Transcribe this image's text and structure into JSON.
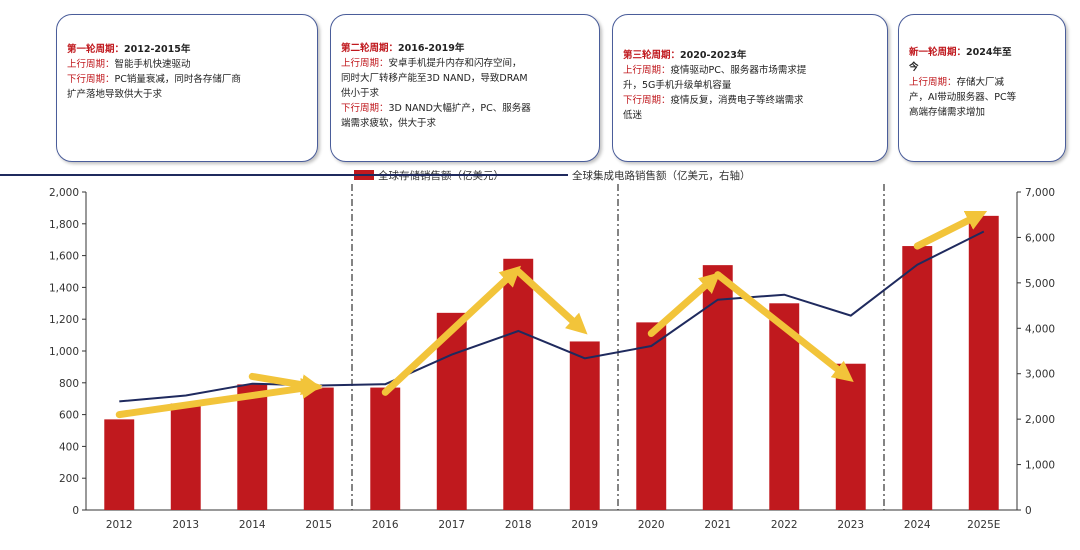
{
  "boxes": [
    {
      "title_k": "第一轮周期：",
      "title_v": "2012-2015年",
      "up_k": "上行周期：",
      "up_v": "智能手机快速驱动",
      "down_k": "下行周期：",
      "down_v": "PC销量衰减，同时各存储厂商",
      "down_v2": "扩产落地导致供大于求"
    },
    {
      "title_k": "第二轮周期：",
      "title_v": "2016-2019年",
      "up_k": "上行周期：",
      "up_v": "安卓手机提升内存和闪存空间，",
      "up_v2": "同时大厂转移产能至3D NAND，导致DRAM",
      "up_v3": "供小于求",
      "down_k": "下行周期：",
      "down_v": "3D NAND大幅扩产，PC、服务器",
      "down_v2": "端需求疲软，供大于求"
    },
    {
      "title_k": "第三轮周期：",
      "title_v": "2020-2023年",
      "up_k": "上行周期：",
      "up_v": "疫情驱动PC、服务器市场需求提",
      "up_v2": "升，5G手机升级单机容量",
      "down_k": "下行周期：",
      "down_v": "疫情反复，消费电子等终端需求",
      "down_v2": "低迷"
    },
    {
      "title_k": "新一轮周期：",
      "title_v": "2024年至",
      "title_v2": "今",
      "up_k": "上行周期：",
      "up_v": "存储大厂减",
      "up_v2": "产，AI带动服务器、PC等",
      "up_v3": "高端存储需求增加"
    }
  ],
  "legend": {
    "bar": "全球存储销售额（亿美元）",
    "line": "全球集成电路销售额（亿美元，右轴）"
  },
  "colors": {
    "bar": "#c0191e",
    "line": "#1f2a5e",
    "arrow": "#f2c43a",
    "box_border": "#4a5d9a"
  },
  "chart_data": {
    "type": "bar",
    "categories": [
      "2012",
      "2013",
      "2014",
      "2015",
      "2016",
      "2017",
      "2018",
      "2019",
      "2020",
      "2021",
      "2022",
      "2023",
      "2024",
      "2025E"
    ],
    "series": [
      {
        "name": "全球存储销售额（亿美元）",
        "type": "bar",
        "axis": "left",
        "values": [
          570,
          670,
          790,
          770,
          770,
          1240,
          1580,
          1060,
          1180,
          1540,
          1300,
          920,
          1660,
          1850
        ]
      },
      {
        "name": "全球集成电路销售额（亿美元，右轴）",
        "type": "line",
        "axis": "right",
        "values": [
          2390,
          2520,
          2780,
          2740,
          2770,
          3420,
          3940,
          3340,
          3610,
          4630,
          4740,
          4280,
          5400,
          6130
        ]
      }
    ],
    "yticks_left": [
      "0",
      "200",
      "400",
      "600",
      "800",
      "1,000",
      "1,200",
      "1,400",
      "1,600",
      "1,800",
      "2,000"
    ],
    "yticks_right": [
      "0",
      "1,000",
      "2,000",
      "3,000",
      "4,000",
      "5,000",
      "6,000",
      "7,000"
    ],
    "ylim_left": [
      0,
      2000
    ],
    "ylim_right": [
      0,
      7000
    ],
    "cycle_dividers_after": [
      "2015",
      "2019",
      "2023"
    ],
    "trend_arrows": [
      {
        "from": [
          "2012",
          600
        ],
        "to": [
          "2015",
          780
        ]
      },
      {
        "from": [
          "2014",
          840
        ],
        "to": [
          "2015",
          770
        ]
      },
      {
        "from": [
          "2016",
          740
        ],
        "to": [
          "2018",
          1520
        ]
      },
      {
        "from": [
          "2018",
          1500
        ],
        "to": [
          "2019",
          1120
        ]
      },
      {
        "from": [
          "2020",
          1110
        ],
        "to": [
          "2021",
          1480
        ]
      },
      {
        "from": [
          "2021",
          1480
        ],
        "to": [
          "2023",
          820
        ]
      },
      {
        "from": [
          "2024",
          1660
        ],
        "to": [
          "2025E",
          1870
        ]
      }
    ],
    "legend_position": "top-center",
    "grid": false
  }
}
